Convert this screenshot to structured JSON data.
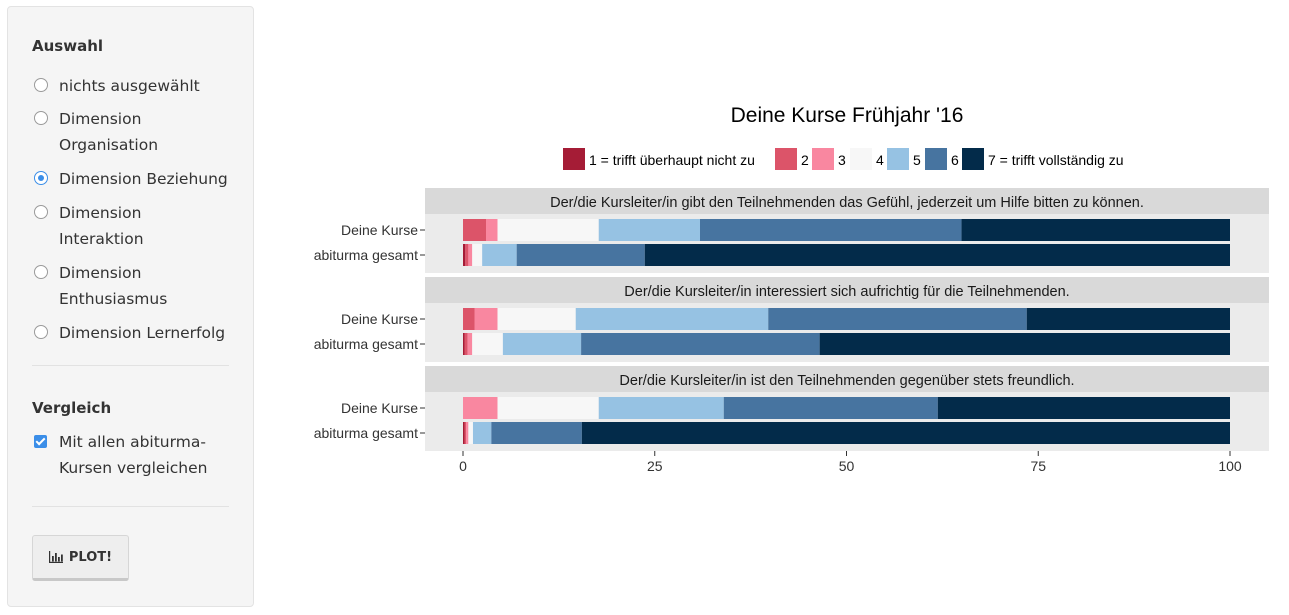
{
  "sidebar": {
    "auswahl_title": "Auswahl",
    "options": [
      {
        "label_lines": [
          "nichts ausgewählt"
        ],
        "checked": false
      },
      {
        "label_lines": [
          "Dimension",
          "Organisation"
        ],
        "checked": false
      },
      {
        "label_lines": [
          "Dimension Beziehung"
        ],
        "checked": true
      },
      {
        "label_lines": [
          "Dimension",
          "Interaktion"
        ],
        "checked": false
      },
      {
        "label_lines": [
          "Dimension",
          "Enthusiasmus"
        ],
        "checked": false
      },
      {
        "label_lines": [
          "Dimension Lernerfolg"
        ],
        "checked": false
      }
    ],
    "vergleich_title": "Vergleich",
    "compare_label_lines": [
      "Mit allen abiturma-",
      "Kursen vergleichen"
    ],
    "compare_checked": true,
    "plot_label": "PLOT!",
    "plot_icon": "bar-chart-icon"
  },
  "chart_data": {
    "type": "bar",
    "orientation": "horizontal",
    "stacked": true,
    "title": "Deine Kurse Frühjahr '16",
    "legend": {
      "placement": "top",
      "entries": [
        "1 = trifft überhaupt nicht zu",
        "2",
        "3",
        "4",
        "5",
        "6",
        "7 = trifft vollständig zu"
      ],
      "colors": [
        "#a51c36",
        "#dc5469",
        "#f987a0",
        "#f7f7f7",
        "#96c2e3",
        "#4774a0",
        "#032b4a"
      ]
    },
    "x_ticks": [
      0,
      25,
      50,
      75,
      100
    ],
    "xlim": [
      0,
      100
    ],
    "grid": false,
    "facets": [
      {
        "title": "Der/die Kursleiter/in gibt den Teilnehmenden das Gefühl, jederzeit um Hilfe bitten zu können.",
        "rows": [
          {
            "label": "Deine Kurse",
            "values": [
              0,
              3,
              1.5,
              13.2,
              13.2,
              34.1,
              35
            ]
          },
          {
            "label": "abiturma gesamt",
            "values": [
              0.3,
              0.4,
              0.5,
              1.3,
              4.5,
              16.7,
              76.3
            ]
          }
        ]
      },
      {
        "title": "Der/die Kursleiter/in interessiert sich aufrichtig für die Teilnehmenden.",
        "rows": [
          {
            "label": "Deine Kurse",
            "values": [
              0,
              1.5,
              3,
              10.2,
              25.1,
              33.7,
              26.5
            ]
          },
          {
            "label": "abiturma gesamt",
            "values": [
              0.2,
              0.4,
              0.6,
              4,
              10.2,
              31.1,
              53.5
            ]
          }
        ]
      },
      {
        "title": "Der/die Kursleiter/in ist den Teilnehmenden gegenüber stets freundlich.",
        "rows": [
          {
            "label": "Deine Kurse",
            "values": [
              0,
              0,
              4.5,
              13.2,
              16.3,
              27.9,
              38.1
            ]
          },
          {
            "label": "abiturma gesamt",
            "values": [
              0.2,
              0.2,
              0.3,
              0.6,
              2.4,
              11.8,
              84.5
            ]
          }
        ]
      }
    ]
  }
}
